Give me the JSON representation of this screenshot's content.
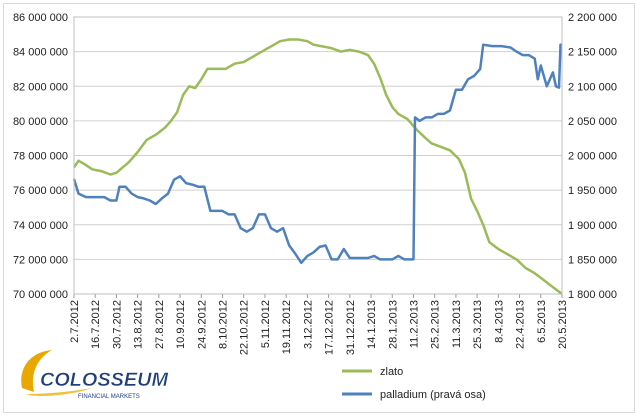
{
  "chart_data": {
    "type": "line",
    "title": "",
    "xlabel": "",
    "ylabel": "",
    "x_ticks": [
      "2.7.2012",
      "16.7.2012",
      "30.7.2012",
      "13.8.2012",
      "27.8.2012",
      "10.9.2012",
      "24.9.2012",
      "8.10.2012",
      "22.10.2012",
      "5.11.2012",
      "19.11.2012",
      "3.12.2012",
      "17.12.2012",
      "31.12.2012",
      "14.1.2013",
      "28.1.2013",
      "11.2.2013",
      "25.2.2013",
      "11.3.2013",
      "25.3.2013",
      "8.4.2013",
      "22.4.2013",
      "6.5.2013",
      "20.5.2013"
    ],
    "y_left_ticks": [
      "70 000 000",
      "72 000 000",
      "74 000 000",
      "76 000 000",
      "78 000 000",
      "80 000 000",
      "82 000 000",
      "84 000 000",
      "86 000 000"
    ],
    "y_left_values": [
      70000000,
      72000000,
      74000000,
      76000000,
      78000000,
      80000000,
      82000000,
      84000000,
      86000000
    ],
    "y_right_ticks": [
      "1 800 000",
      "1 850 000",
      "1 900 000",
      "1 950 000",
      "2 000 000",
      "2 050 000",
      "2 100 000",
      "2 150 000",
      "2 200 000"
    ],
    "y_right_values": [
      1800000,
      1850000,
      1900000,
      1950000,
      2000000,
      2050000,
      2100000,
      2150000,
      2200000
    ],
    "ylim_left": [
      70000000,
      86000000
    ],
    "ylim_right": [
      1800000,
      2200000
    ],
    "x_range_days": [
      0,
      322
    ],
    "grid": true,
    "legend_position": "bottom-right",
    "series": [
      {
        "name": "zlato",
        "axis": "left",
        "color": "#9bbb59",
        "points": [
          [
            0,
            77.3
          ],
          [
            3,
            77.7
          ],
          [
            7,
            77.5
          ],
          [
            12,
            77.2
          ],
          [
            18,
            77.1
          ],
          [
            24,
            76.9
          ],
          [
            28,
            77.0
          ],
          [
            32,
            77.3
          ],
          [
            36,
            77.6
          ],
          [
            42,
            78.2
          ],
          [
            48,
            78.9
          ],
          [
            54,
            79.2
          ],
          [
            60,
            79.6
          ],
          [
            64,
            80.0
          ],
          [
            68,
            80.5
          ],
          [
            72,
            81.5
          ],
          [
            76,
            82.0
          ],
          [
            80,
            81.9
          ],
          [
            84,
            82.4
          ],
          [
            88,
            83.0
          ],
          [
            94,
            83.0
          ],
          [
            100,
            83.0
          ],
          [
            106,
            83.3
          ],
          [
            112,
            83.4
          ],
          [
            118,
            83.7
          ],
          [
            124,
            84.0
          ],
          [
            130,
            84.3
          ],
          [
            136,
            84.6
          ],
          [
            142,
            84.7
          ],
          [
            148,
            84.7
          ],
          [
            154,
            84.6
          ],
          [
            158,
            84.4
          ],
          [
            164,
            84.3
          ],
          [
            170,
            84.2
          ],
          [
            176,
            84.0
          ],
          [
            182,
            84.1
          ],
          [
            188,
            84.0
          ],
          [
            194,
            83.8
          ],
          [
            198,
            83.3
          ],
          [
            202,
            82.5
          ],
          [
            206,
            81.5
          ],
          [
            210,
            80.8
          ],
          [
            214,
            80.4
          ],
          [
            220,
            80.1
          ],
          [
            226,
            79.5
          ],
          [
            232,
            79.0
          ],
          [
            236,
            78.7
          ],
          [
            242,
            78.5
          ],
          [
            248,
            78.3
          ],
          [
            254,
            77.8
          ],
          [
            258,
            77.0
          ],
          [
            262,
            75.5
          ],
          [
            266,
            74.8
          ],
          [
            270,
            74.0
          ],
          [
            274,
            73.0
          ],
          [
            280,
            72.6
          ],
          [
            286,
            72.3
          ],
          [
            292,
            72.0
          ],
          [
            298,
            71.5
          ],
          [
            304,
            71.2
          ],
          [
            310,
            70.8
          ],
          [
            316,
            70.4
          ],
          [
            322,
            70.0
          ]
        ]
      },
      {
        "name": "palladium (pravá osa)",
        "axis": "right",
        "color": "#4f81bd",
        "points": [
          [
            0,
            1966
          ],
          [
            3,
            1945
          ],
          [
            8,
            1940
          ],
          [
            14,
            1940
          ],
          [
            20,
            1940
          ],
          [
            24,
            1935
          ],
          [
            28,
            1935
          ],
          [
            30,
            1955
          ],
          [
            34,
            1955
          ],
          [
            38,
            1945
          ],
          [
            42,
            1940
          ],
          [
            46,
            1938
          ],
          [
            50,
            1935
          ],
          [
            54,
            1930
          ],
          [
            58,
            1938
          ],
          [
            62,
            1945
          ],
          [
            66,
            1965
          ],
          [
            70,
            1970
          ],
          [
            74,
            1960
          ],
          [
            78,
            1958
          ],
          [
            82,
            1955
          ],
          [
            86,
            1955
          ],
          [
            90,
            1920
          ],
          [
            94,
            1920
          ],
          [
            98,
            1920
          ],
          [
            102,
            1915
          ],
          [
            106,
            1915
          ],
          [
            110,
            1895
          ],
          [
            114,
            1890
          ],
          [
            118,
            1895
          ],
          [
            122,
            1915
          ],
          [
            126,
            1915
          ],
          [
            130,
            1895
          ],
          [
            134,
            1890
          ],
          [
            138,
            1895
          ],
          [
            142,
            1870
          ],
          [
            146,
            1858
          ],
          [
            150,
            1845
          ],
          [
            154,
            1855
          ],
          [
            158,
            1860
          ],
          [
            162,
            1868
          ],
          [
            166,
            1870
          ],
          [
            170,
            1850
          ],
          [
            174,
            1850
          ],
          [
            178,
            1865
          ],
          [
            182,
            1852
          ],
          [
            186,
            1852
          ],
          [
            190,
            1852
          ],
          [
            194,
            1852
          ],
          [
            198,
            1855
          ],
          [
            202,
            1850
          ],
          [
            206,
            1850
          ],
          [
            210,
            1850
          ],
          [
            214,
            1855
          ],
          [
            218,
            1850
          ],
          [
            222,
            1850
          ],
          [
            224,
            1850
          ],
          [
            225,
            2055
          ],
          [
            228,
            2050
          ],
          [
            232,
            2055
          ],
          [
            236,
            2055
          ],
          [
            240,
            2060
          ],
          [
            244,
            2060
          ],
          [
            248,
            2065
          ],
          [
            252,
            2095
          ],
          [
            256,
            2095
          ],
          [
            260,
            2110
          ],
          [
            264,
            2115
          ],
          [
            268,
            2125
          ],
          [
            270,
            2160
          ],
          [
            276,
            2158
          ],
          [
            282,
            2158
          ],
          [
            288,
            2156
          ],
          [
            292,
            2150
          ],
          [
            296,
            2145
          ],
          [
            300,
            2145
          ],
          [
            304,
            2140
          ],
          [
            306,
            2110
          ],
          [
            308,
            2130
          ],
          [
            312,
            2100
          ],
          [
            316,
            2120
          ],
          [
            318,
            2100
          ],
          [
            320,
            2098
          ],
          [
            321,
            2160
          ],
          [
            322,
            2160
          ]
        ]
      }
    ]
  },
  "logo": {
    "name": "COLOSSEUM",
    "tagline": "FINANCIAL MARKETS"
  }
}
